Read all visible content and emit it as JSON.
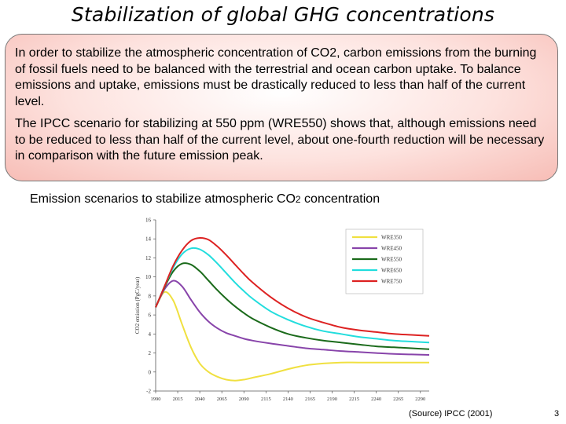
{
  "slide": {
    "title": "Stabilization of global GHG concentrations",
    "paragraph1": "In order to stabilize the atmospheric concentration of CO2, carbon emissions from the burning of fossil fuels need to be balanced with the terrestrial and ocean carbon uptake. To balance emissions and uptake, emissions must be drastically reduced to less than half of the current level.",
    "paragraph2": "The IPCC scenario for stabilizing at 550 ppm (WRE550) shows that, although emissions need to be reduced to less than half of the current level, about one-fourth reduction will be necessary in comparison with the future emission peak.",
    "caption_main": "Emission scenarios to stabilize atmospheric CO",
    "caption_sub": "2",
    "caption_end": " concentration",
    "source": "(Source) IPCC (2001)",
    "page_number": "3"
  },
  "chart_data": {
    "type": "line",
    "ylabel": "CO2 emission (PgC/year)",
    "ylim": [
      -2,
      16
    ],
    "yticks": [
      -2,
      0,
      2,
      4,
      6,
      8,
      10,
      12,
      14,
      16
    ],
    "xlim": [
      1990,
      2300
    ],
    "xticks": [
      1990,
      2015,
      2040,
      2065,
      2090,
      2115,
      2140,
      2165,
      2190,
      2215,
      2240,
      2265,
      2290
    ],
    "legend_position": "top-right",
    "x": [
      1990,
      2000,
      2010,
      2020,
      2030,
      2040,
      2050,
      2060,
      2070,
      2080,
      2090,
      2100,
      2120,
      2140,
      2160,
      2180,
      2200,
      2220,
      2240,
      2260,
      2280,
      2300
    ],
    "series": [
      {
        "name": "WRE350",
        "color": "#f0e040",
        "values": [
          6.8,
          8.4,
          7.5,
          5.0,
          2.6,
          0.9,
          0.0,
          -0.5,
          -0.8,
          -0.9,
          -0.8,
          -0.6,
          -0.2,
          0.3,
          0.7,
          0.9,
          1.0,
          1.0,
          1.0,
          1.0,
          1.0,
          1.0
        ]
      },
      {
        "name": "WRE450",
        "color": "#8844aa",
        "values": [
          6.8,
          8.7,
          9.6,
          9.0,
          7.6,
          6.3,
          5.3,
          4.6,
          4.1,
          3.8,
          3.5,
          3.3,
          3.0,
          2.75,
          2.5,
          2.35,
          2.2,
          2.1,
          2.0,
          1.9,
          1.85,
          1.8
        ]
      },
      {
        "name": "WRE550",
        "color": "#1a6a1a",
        "values": [
          6.8,
          8.9,
          10.6,
          11.4,
          11.3,
          10.6,
          9.6,
          8.6,
          7.7,
          6.9,
          6.2,
          5.6,
          4.7,
          4.0,
          3.6,
          3.3,
          3.1,
          2.9,
          2.7,
          2.6,
          2.5,
          2.4
        ]
      },
      {
        "name": "WRE650",
        "color": "#22dddd",
        "values": [
          6.8,
          9.0,
          11.0,
          12.4,
          13.0,
          12.9,
          12.3,
          11.4,
          10.4,
          9.4,
          8.5,
          7.7,
          6.4,
          5.5,
          4.8,
          4.3,
          4.0,
          3.7,
          3.5,
          3.3,
          3.2,
          3.1
        ]
      },
      {
        "name": "WRE750",
        "color": "#dd2222",
        "values": [
          6.8,
          9.0,
          11.2,
          12.8,
          13.8,
          14.1,
          13.9,
          13.2,
          12.3,
          11.3,
          10.3,
          9.4,
          7.9,
          6.7,
          5.8,
          5.2,
          4.7,
          4.4,
          4.2,
          4.0,
          3.9,
          3.8
        ]
      }
    ]
  }
}
